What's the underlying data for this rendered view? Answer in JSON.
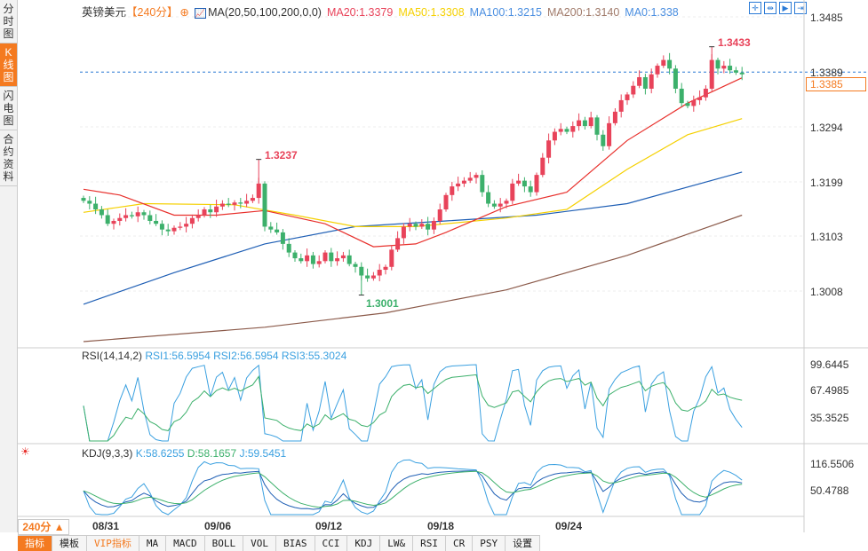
{
  "left_tabs": [
    "分时图",
    "K线图",
    "闪电图",
    "合约资料"
  ],
  "header": {
    "symbol": "英镑美元",
    "period": "【240分】",
    "ma_label": "MA(20,50,100,200,0,0)",
    "ma20": "MA20:1.3379",
    "ma50": "MA50:1.3308",
    "ma100": "MA100:1.3215",
    "ma200": "MA200:1.3140",
    "ma0": "MA0:1.338"
  },
  "colors": {
    "up": "#e8435a",
    "down": "#3cb06b",
    "ma20": "#e8302c",
    "ma50": "#f5d000",
    "ma100": "#1f5fb5",
    "ma200": "#8b5a4a",
    "accent": "#f47a20",
    "rsi1": "#3aa0e0",
    "rsi2": "#3aa0e0",
    "rsi3": "#3cb06b"
  },
  "price_axis": [
    "1.3485",
    "1.3389",
    "1.3294",
    "1.3199",
    "1.3103",
    "1.3008"
  ],
  "current_price": "1.3385",
  "annotations": {
    "high1": "1.3237",
    "low": "1.3001",
    "high2": "1.3433"
  },
  "rsi": {
    "label": "RSI(14,14,2)",
    "rsi1": "RSI1:56.5954",
    "rsi2": "RSI2:56.5954",
    "rsi3": "RSI3:55.3024",
    "axis": [
      "99.6445",
      "67.4985",
      "35.3525"
    ]
  },
  "kdj": {
    "label": "KDJ(9,3,3)",
    "k": "K:58.6255",
    "d": "D:58.1657",
    "j": "J:59.5451",
    "axis": [
      "116.5506",
      "50.4788"
    ]
  },
  "x_axis": [
    "08/31",
    "09/06",
    "09/12",
    "09/18",
    "09/24"
  ],
  "period_selector": "240分 ▲",
  "bottom_tabs": [
    "指标",
    "模板",
    "VIP指标",
    "MA",
    "MACD",
    "BOLL",
    "VOL",
    "BIAS",
    "CCI",
    "KDJ",
    "LW&",
    "RSI",
    "CR",
    "PSY",
    "设置"
  ],
  "chart_data": {
    "type": "candlestick",
    "ylim": [
      1.3008,
      1.3485
    ],
    "closes": [
      1.3165,
      1.316,
      1.315,
      1.314,
      1.3125,
      1.313,
      1.3135,
      1.314,
      1.3138,
      1.3145,
      1.314,
      1.313,
      1.3125,
      1.3115,
      1.3112,
      1.3118,
      1.312,
      1.3125,
      1.3135,
      1.314,
      1.315,
      1.3145,
      1.3155,
      1.316,
      1.3158,
      1.3162,
      1.316,
      1.3165,
      1.317,
      1.3195,
      1.312,
      1.3115,
      1.311,
      1.309,
      1.3075,
      1.3065,
      1.306,
      1.307,
      1.3055,
      1.306,
      1.3075,
      1.306,
      1.3065,
      1.307,
      1.3055,
      1.305,
      1.3035,
      1.303,
      1.3035,
      1.3045,
      1.305,
      1.308,
      1.31,
      1.312,
      1.3125,
      1.312,
      1.3125,
      1.3115,
      1.313,
      1.315,
      1.3175,
      1.319,
      1.3195,
      1.32,
      1.3205,
      1.321,
      1.318,
      1.316,
      1.3155,
      1.316,
      1.3165,
      1.3195,
      1.32,
      1.319,
      1.318,
      1.321,
      1.324,
      1.327,
      1.3285,
      1.329,
      1.3285,
      1.3295,
      1.3305,
      1.3295,
      1.331,
      1.328,
      1.326,
      1.33,
      1.332,
      1.334,
      1.335,
      1.3365,
      1.338,
      1.336,
      1.3385,
      1.34,
      1.341,
      1.3395,
      1.336,
      1.3335,
      1.333,
      1.334,
      1.3345,
      1.336,
      1.341,
      1.3395,
      1.34,
      1.3392,
      1.3388,
      1.3385
    ],
    "ma_lines": {
      "ma20": [
        [
          0,
          1.3185
        ],
        [
          6,
          1.3175
        ],
        [
          15,
          1.314
        ],
        [
          22,
          1.314
        ],
        [
          30,
          1.3148
        ],
        [
          40,
          1.3125
        ],
        [
          48,
          1.3085
        ],
        [
          55,
          1.309
        ],
        [
          60,
          1.311
        ],
        [
          70,
          1.3155
        ],
        [
          80,
          1.318
        ],
        [
          90,
          1.327
        ],
        [
          100,
          1.3335
        ],
        [
          109,
          1.3379
        ]
      ],
      "ma50": [
        [
          0,
          1.3145
        ],
        [
          10,
          1.316
        ],
        [
          25,
          1.3158
        ],
        [
          35,
          1.314
        ],
        [
          45,
          1.312
        ],
        [
          55,
          1.312
        ],
        [
          70,
          1.3135
        ],
        [
          80,
          1.315
        ],
        [
          90,
          1.322
        ],
        [
          100,
          1.328
        ],
        [
          109,
          1.3308
        ]
      ],
      "ma100": [
        [
          0,
          1.2985
        ],
        [
          15,
          1.304
        ],
        [
          30,
          1.309
        ],
        [
          45,
          1.312
        ],
        [
          60,
          1.313
        ],
        [
          75,
          1.314
        ],
        [
          90,
          1.316
        ],
        [
          109,
          1.3215
        ]
      ],
      "ma200": [
        [
          0,
          1.292
        ],
        [
          30,
          1.2945
        ],
        [
          50,
          1.297
        ],
        [
          70,
          1.301
        ],
        [
          90,
          1.307
        ],
        [
          109,
          1.314
        ]
      ]
    }
  }
}
